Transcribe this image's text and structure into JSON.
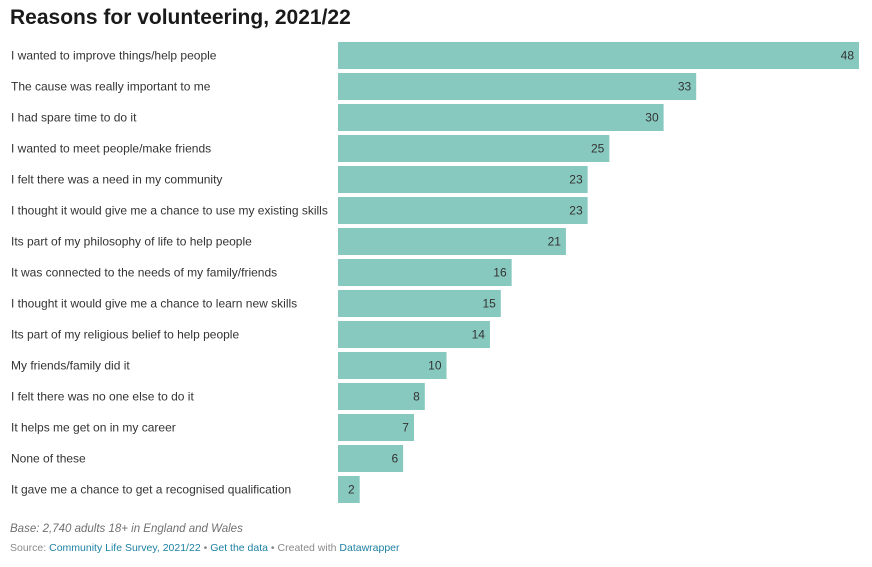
{
  "chart_data": {
    "type": "bar",
    "orientation": "horizontal",
    "title": "Reasons for volunteering, 2021/22",
    "categories": [
      "I wanted to improve things/help people",
      "The cause was really important to me",
      "I had spare time to do it",
      "I wanted to meet people/make friends",
      "I felt there was a need in my community",
      "I thought it would give me a chance to use my existing skills",
      "Its part of my philosophy of life to help people",
      "It was connected to the needs of my family/friends",
      "I thought it would give me a chance to learn new skills",
      "Its part of my religious belief to help people",
      "My friends/family did it",
      "I felt there was no one else to do it",
      "It helps me get on in my career",
      "None of these",
      "It gave me a chance to get a recognised qualification"
    ],
    "values": [
      48,
      33,
      30,
      25,
      23,
      23,
      21,
      16,
      15,
      14,
      10,
      8,
      7,
      6,
      2
    ],
    "xlim": [
      0,
      48
    ],
    "bar_color": "#88c9bf",
    "grid": false,
    "legend": "none"
  },
  "notes": "Base: 2,740 adults 18+ in England and Wales",
  "footer": {
    "source_prefix": "Source:",
    "source_link": "Community Life Survey, 2021/22",
    "separator": "•",
    "get_data_link": "Get the data",
    "created_with": "Created with",
    "tool_link": "Datawrapper"
  },
  "colors": {
    "link": "#1d81a2",
    "text_muted": "#8a8a8a"
  }
}
